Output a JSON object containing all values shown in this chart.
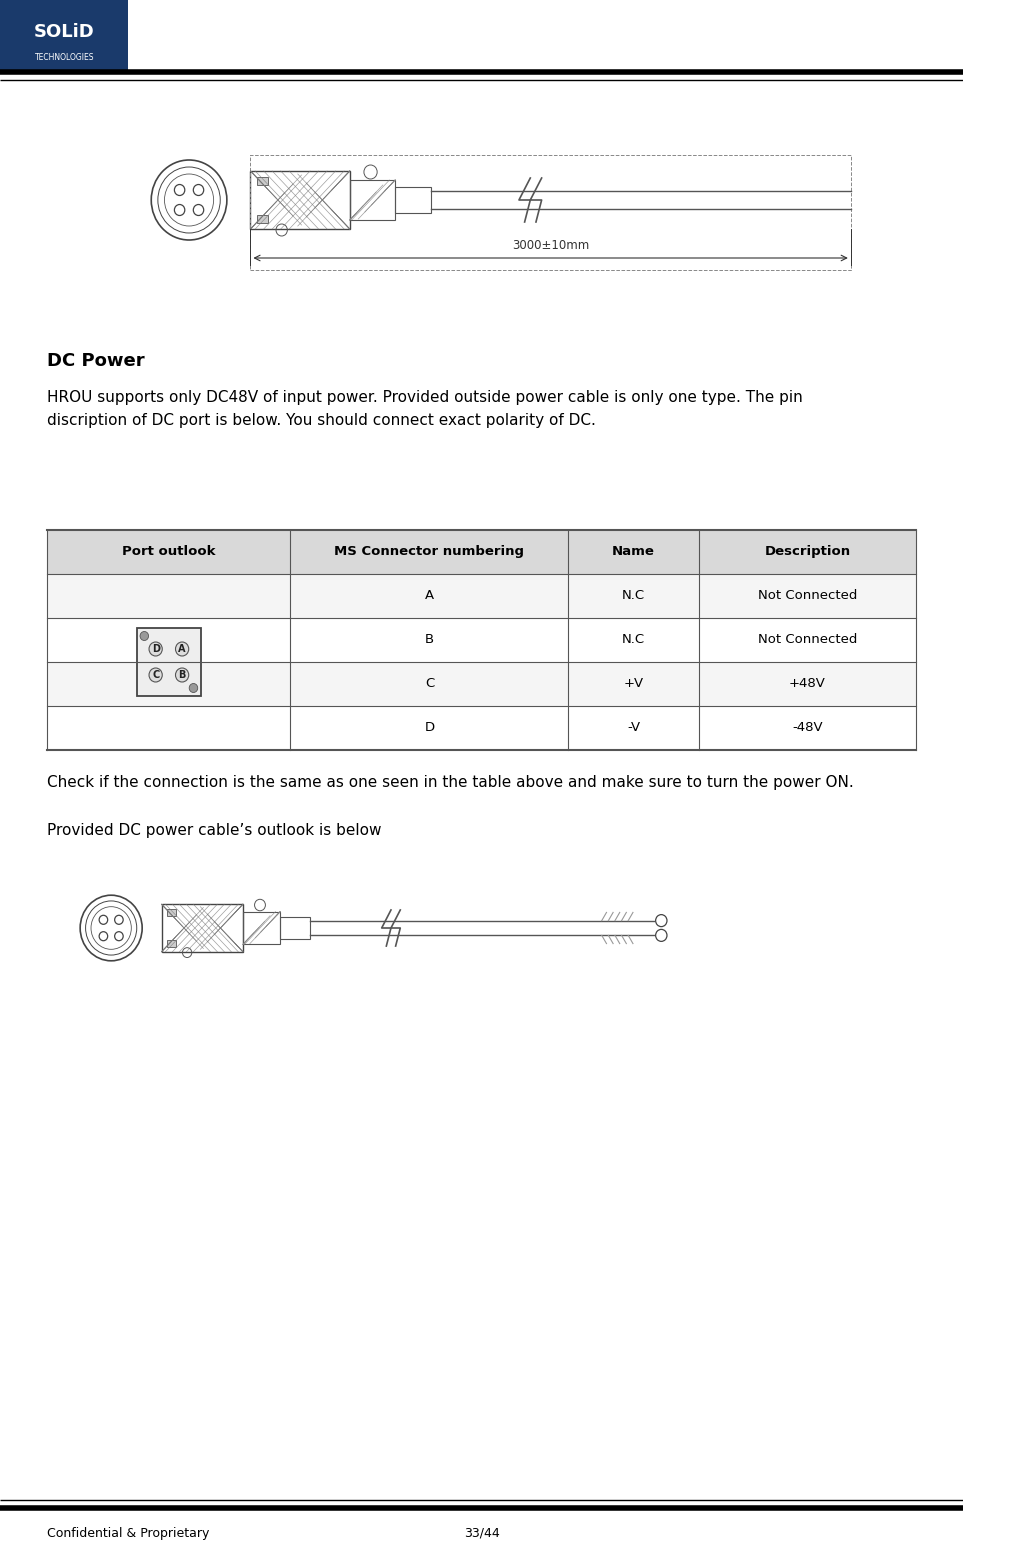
{
  "page_width": 10.19,
  "page_height": 15.63,
  "bg_color": "#ffffff",
  "logo_text_solid": "SOLiD",
  "logo_text_tech": "TECHNOLOGIES",
  "logo_bg": "#1a3a6b",
  "header_line_color": "#000000",
  "footer_line_color": "#000000",
  "footer_left": "Confidential & Proprietary",
  "footer_right": "33/44",
  "section_title": "DC Power",
  "body_text1": "HROU supports only DC48V of input power. Provided outside power cable is only one type. The pin\ndiscription of DC port is below. You should connect exact polarity of DC.",
  "table_header_bg": "#d9d9d9",
  "table_col_headers": [
    "Port outlook",
    "MS Connector numbering",
    "Name",
    "Description"
  ],
  "table_rows": [
    [
      "",
      "A",
      "N.C",
      "Not Connected"
    ],
    [
      "",
      "B",
      "N.C",
      "Not Connected"
    ],
    [
      "",
      "C",
      "+V",
      "+48V"
    ],
    [
      "",
      "D",
      "-V",
      "-48V"
    ]
  ],
  "check_text": "Check if the connection is the same as one seen in the table above and make sure to turn the power ON.",
  "cable_text": "Provided DC power cable’s outlook is below",
  "dim_label": "3000±10mm",
  "table_line_color": "#555555",
  "text_color": "#000000",
  "font_size_body": 11,
  "font_size_section": 13,
  "font_size_footer": 9
}
